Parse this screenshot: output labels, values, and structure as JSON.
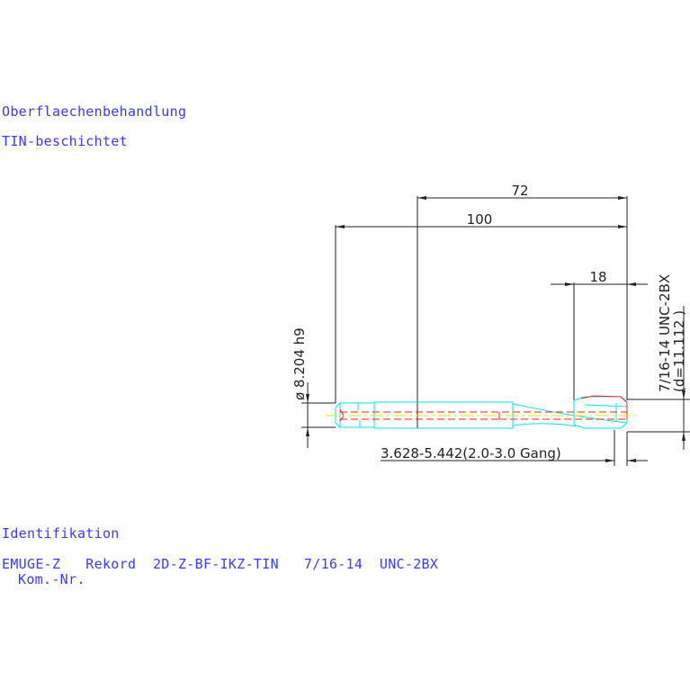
{
  "notes": {
    "surface_label": "Oberflaechenbehandlung",
    "surface_value": "TIN-beschichtet",
    "ident_label": "Identifikation",
    "ident_value": "EMUGE-Z   Rekord  2D-Z-BF-IKZ-TIN   7/16-14  UNC-2BX",
    "kom_nr": "Kom.-Nr."
  },
  "dimensions": {
    "length_72": "72",
    "length_100": "100",
    "length_18": "18",
    "shank_diameter": "ø 8.204 h9",
    "thread_spec": "7/16-14  UNC-2BX",
    "thread_diameter": "(d=11.112 )",
    "chamfer": "3.628-5.442(2.0-3.0 Gang)"
  },
  "colors": {
    "outline": "#00e5ee",
    "hidden": "#ff2020",
    "centerline": "#f0e000",
    "dimension": "#222222",
    "text": "#3a3aff"
  }
}
